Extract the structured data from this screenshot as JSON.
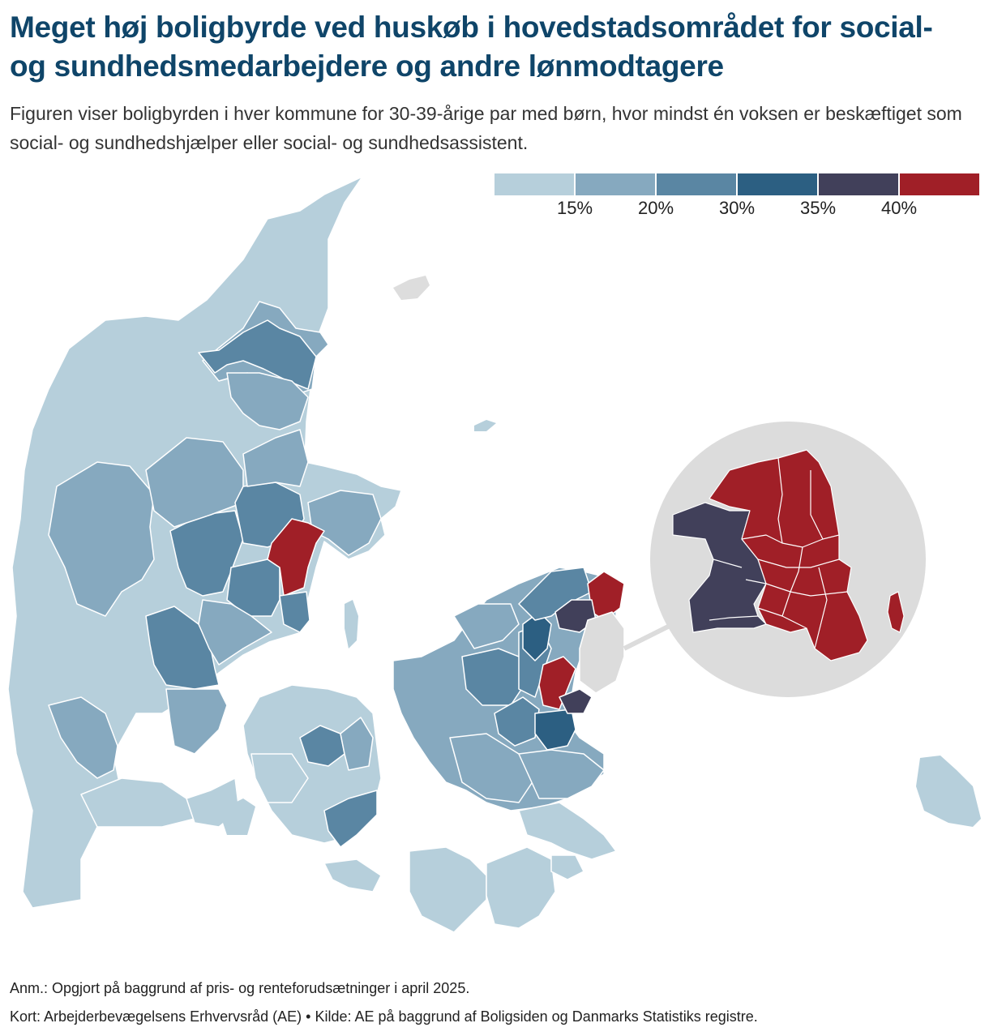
{
  "title": "Meget høj boligbyrde ved huskøb i hovedstadsområdet for social- og sundhedsmedarbejdere og andre lønmodtagere",
  "subtitle": "Figuren viser boligbyrden i hver kommune for 30-39-årige par med børn, hvor mindst én voksen er beskæftiget som social- og sundhedshjælper eller social- og sundhedsassistent.",
  "legend": {
    "colors": [
      "#b6cfdb",
      "#86a9bf",
      "#5a86a3",
      "#2c5f82",
      "#41405a",
      "#a01f27"
    ],
    "ticks": [
      "15%",
      "20%",
      "30%",
      "35%",
      "40%"
    ]
  },
  "colors": {
    "c1": "#b6cfdb",
    "c2": "#86a9bf",
    "c3": "#5a86a3",
    "c4": "#2c5f82",
    "c5": "#41405a",
    "c6": "#a01f27",
    "inset_bg": "#dcdcdc",
    "title": "#0f4569"
  },
  "footer": {
    "note": "Anm.: Opgjort på baggrund af pris- og renteforudsætninger i april 2025.",
    "source": "Kort: Arbejderbevægelsens Erhvervsråd (AE) • Kilde: AE på baggrund af Boligsiden og Danmarks Statistiks registre."
  }
}
